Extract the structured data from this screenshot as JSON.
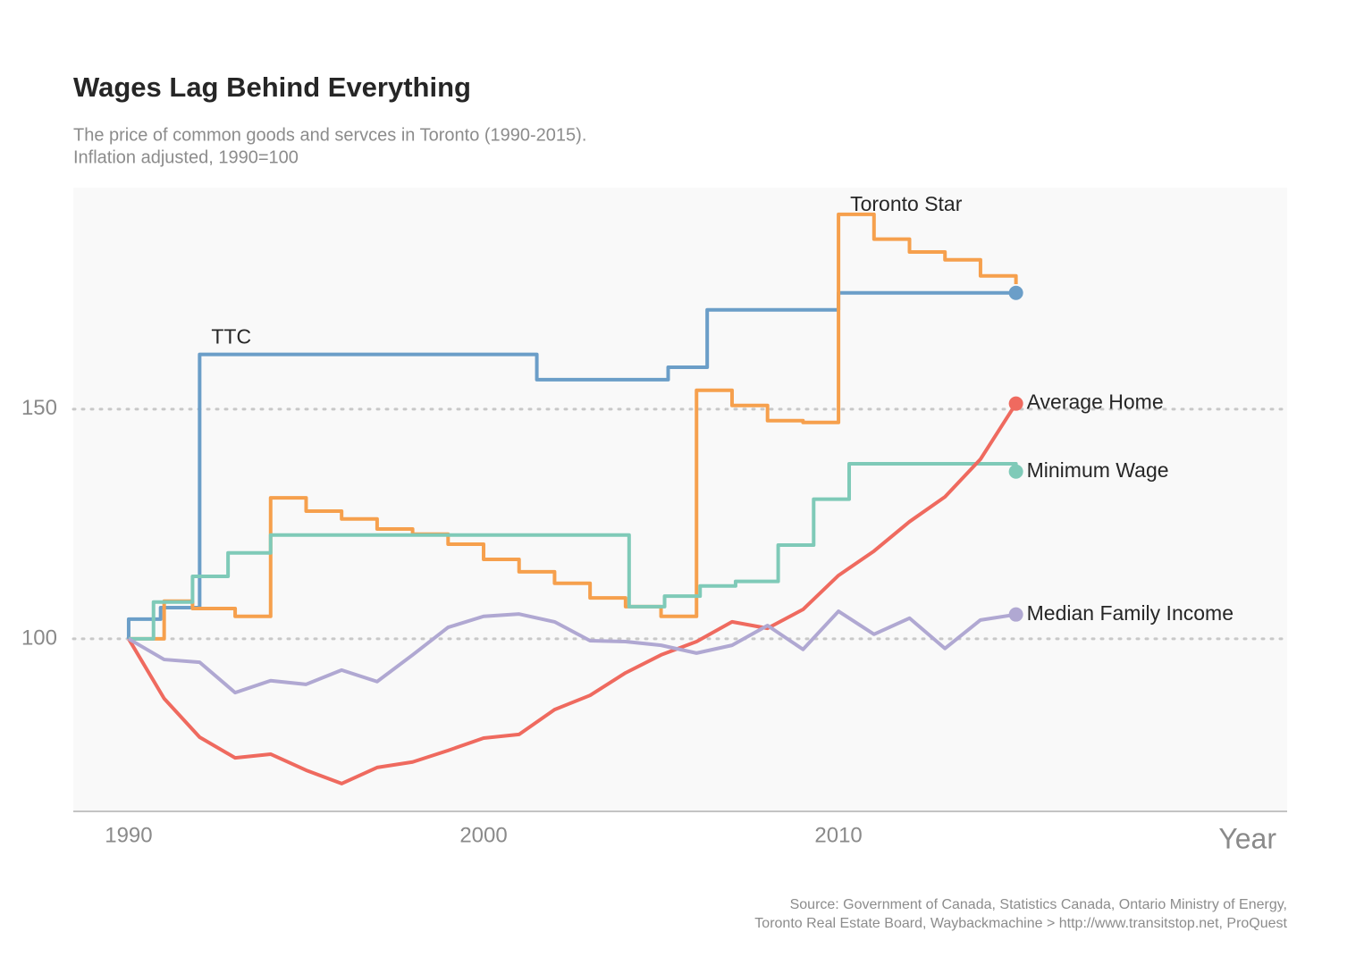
{
  "chart_data": {
    "type": "line",
    "title": "Wages Lag Behind Everything",
    "subtitle": [
      "The price of common goods and servces in Toronto (1990-2015).",
      "Inflation adjusted, 1990=100"
    ],
    "x_label": "Year",
    "source": [
      "Source: Government of Canada, Statistics Canada, Ontario Ministry of Energy,",
      "Toronto Real Estate Board, Waybackmachine > http://www.transitstop.net, ProQuest"
    ],
    "xlim": [
      1988.44,
      2022.64
    ],
    "ylim": [
      62.45,
      198.2
    ],
    "xticks": [
      1990,
      2000,
      2010
    ],
    "yticks": [
      100,
      150
    ],
    "grid": true,
    "series": [
      {
        "name": "TTC",
        "color": "#6b9ec8",
        "step": true,
        "end_dot": true,
        "x": [
          1990,
          1990,
          1990.9,
          1992,
          2001.5,
          2005.2,
          2006.3,
          2010,
          2015
        ],
        "values": [
          100,
          104.3,
          106.8,
          161.9,
          156.4,
          159.1,
          171.6,
          175.3,
          175.3
        ]
      },
      {
        "name": "Toronto Star",
        "color": "#f6a04d",
        "step": true,
        "end_dot": false,
        "x": [
          1990,
          1991,
          1991.8,
          1993,
          1994,
          1995,
          1996,
          1997,
          1998,
          1999,
          2000,
          2001,
          2002,
          2003,
          2004,
          2005,
          2006,
          2007,
          2008,
          2009,
          2010,
          2011,
          2012,
          2013,
          2014,
          2015
        ],
        "values": [
          100,
          108.2,
          106.6,
          104.9,
          130.7,
          127.8,
          126.1,
          123.9,
          122.8,
          120.6,
          117.3,
          114.6,
          112.1,
          108.9,
          107.0,
          104.9,
          154.1,
          150.8,
          147.5,
          147.1,
          192.4,
          187.0,
          184.2,
          182.5,
          179.0,
          177.2
        ]
      },
      {
        "name": "Minimum Wage",
        "color": "#7fcab8",
        "step": true,
        "end_dot": true,
        "x": [
          1990,
          1990.7,
          1991.8,
          1992.8,
          1994,
          2004.1,
          2005.1,
          2006.1,
          2007.1,
          2008.3,
          2009.3,
          2010.3,
          2015
        ],
        "values": [
          100,
          108.0,
          113.6,
          118.7,
          122.6,
          107.0,
          109.3,
          111.5,
          112.5,
          120.4,
          130.4,
          138.1,
          136.4
        ]
      },
      {
        "name": "Average Home",
        "color": "#ef6a5f",
        "step": false,
        "end_dot": true,
        "x": [
          1990,
          1991,
          1992,
          1993,
          1994,
          1995,
          1996,
          1997,
          1998,
          1999,
          2000,
          2001,
          2002,
          2003,
          2004,
          2005,
          2006,
          2007,
          2008,
          2009,
          2010,
          2011,
          2012,
          2013,
          2014,
          2015
        ],
        "values": [
          100,
          87.0,
          78.6,
          74.1,
          74.9,
          71.4,
          68.5,
          72.0,
          73.2,
          75.7,
          78.4,
          79.2,
          84.6,
          87.7,
          92.6,
          96.5,
          99.4,
          103.7,
          102.3,
          106.4,
          113.8,
          119.1,
          125.5,
          130.9,
          139.1,
          151.2
        ]
      },
      {
        "name": "Median Family Income",
        "color": "#b0a8d2",
        "step": false,
        "end_dot": true,
        "x": [
          1990,
          1991,
          1992,
          1993,
          1994,
          1995,
          1996,
          1997,
          1998,
          1999,
          2000,
          2001,
          2002,
          2003,
          2004,
          2005,
          2006,
          2007,
          2008,
          2009,
          2010,
          2011,
          2012,
          2013,
          2014,
          2015
        ],
        "values": [
          100,
          95.5,
          94.9,
          88.3,
          90.9,
          90.1,
          93.2,
          90.7,
          96.5,
          102.5,
          104.9,
          105.4,
          103.7,
          99.6,
          99.4,
          98.6,
          96.9,
          98.6,
          102.9,
          97.7,
          106.0,
          101.0,
          104.5,
          97.9,
          104.1,
          105.3
        ]
      }
    ]
  }
}
